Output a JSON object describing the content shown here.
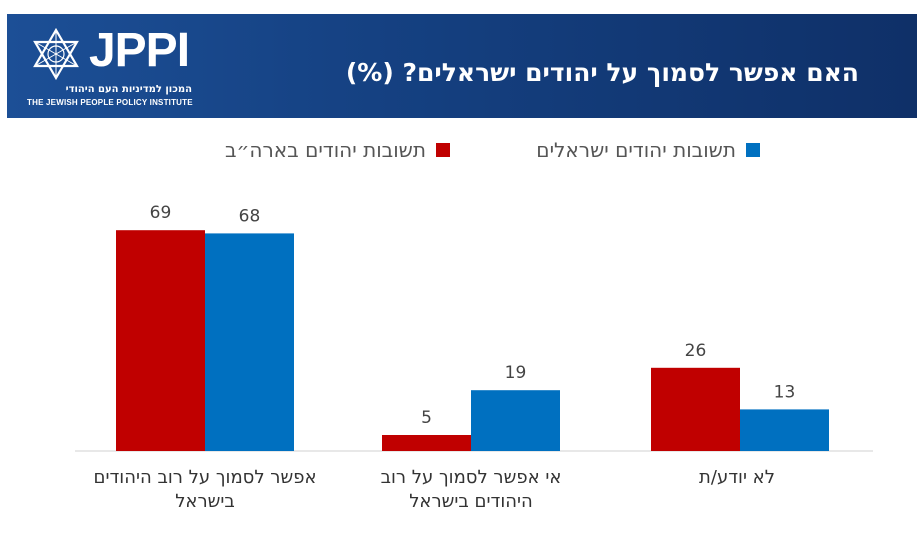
{
  "header": {
    "logo_text": "JPPI",
    "logo_sub_he": "המכון למדיניות העם היהודי",
    "logo_sub_en": "THE JEWISH PEOPLE POLICY INSTITUTE",
    "title": "האם אפשר לסמוך על יהודים ישראלים? (%)",
    "background_color": "#154182"
  },
  "chart_data": {
    "type": "bar",
    "categories": [
      "אפשר לסמוך על רוב היהודים בישראל",
      "אי אפשר לסמוך על רוב היהודים בישראל",
      "לא יודע/ת"
    ],
    "series": [
      {
        "name": "תשובות יהודים בארה״ב",
        "color": "#c00000",
        "values": [
          69,
          5,
          26
        ]
      },
      {
        "name": "תשובות יהודים ישראלים",
        "color": "#0070c0",
        "values": [
          68,
          19,
          13
        ]
      }
    ],
    "title": "האם אפשר לסמוך על יהודים ישראלים? (%)",
    "xlabel": "",
    "ylabel": "",
    "ylim": [
      0,
      75
    ],
    "grid": false,
    "legend": "top-center"
  }
}
